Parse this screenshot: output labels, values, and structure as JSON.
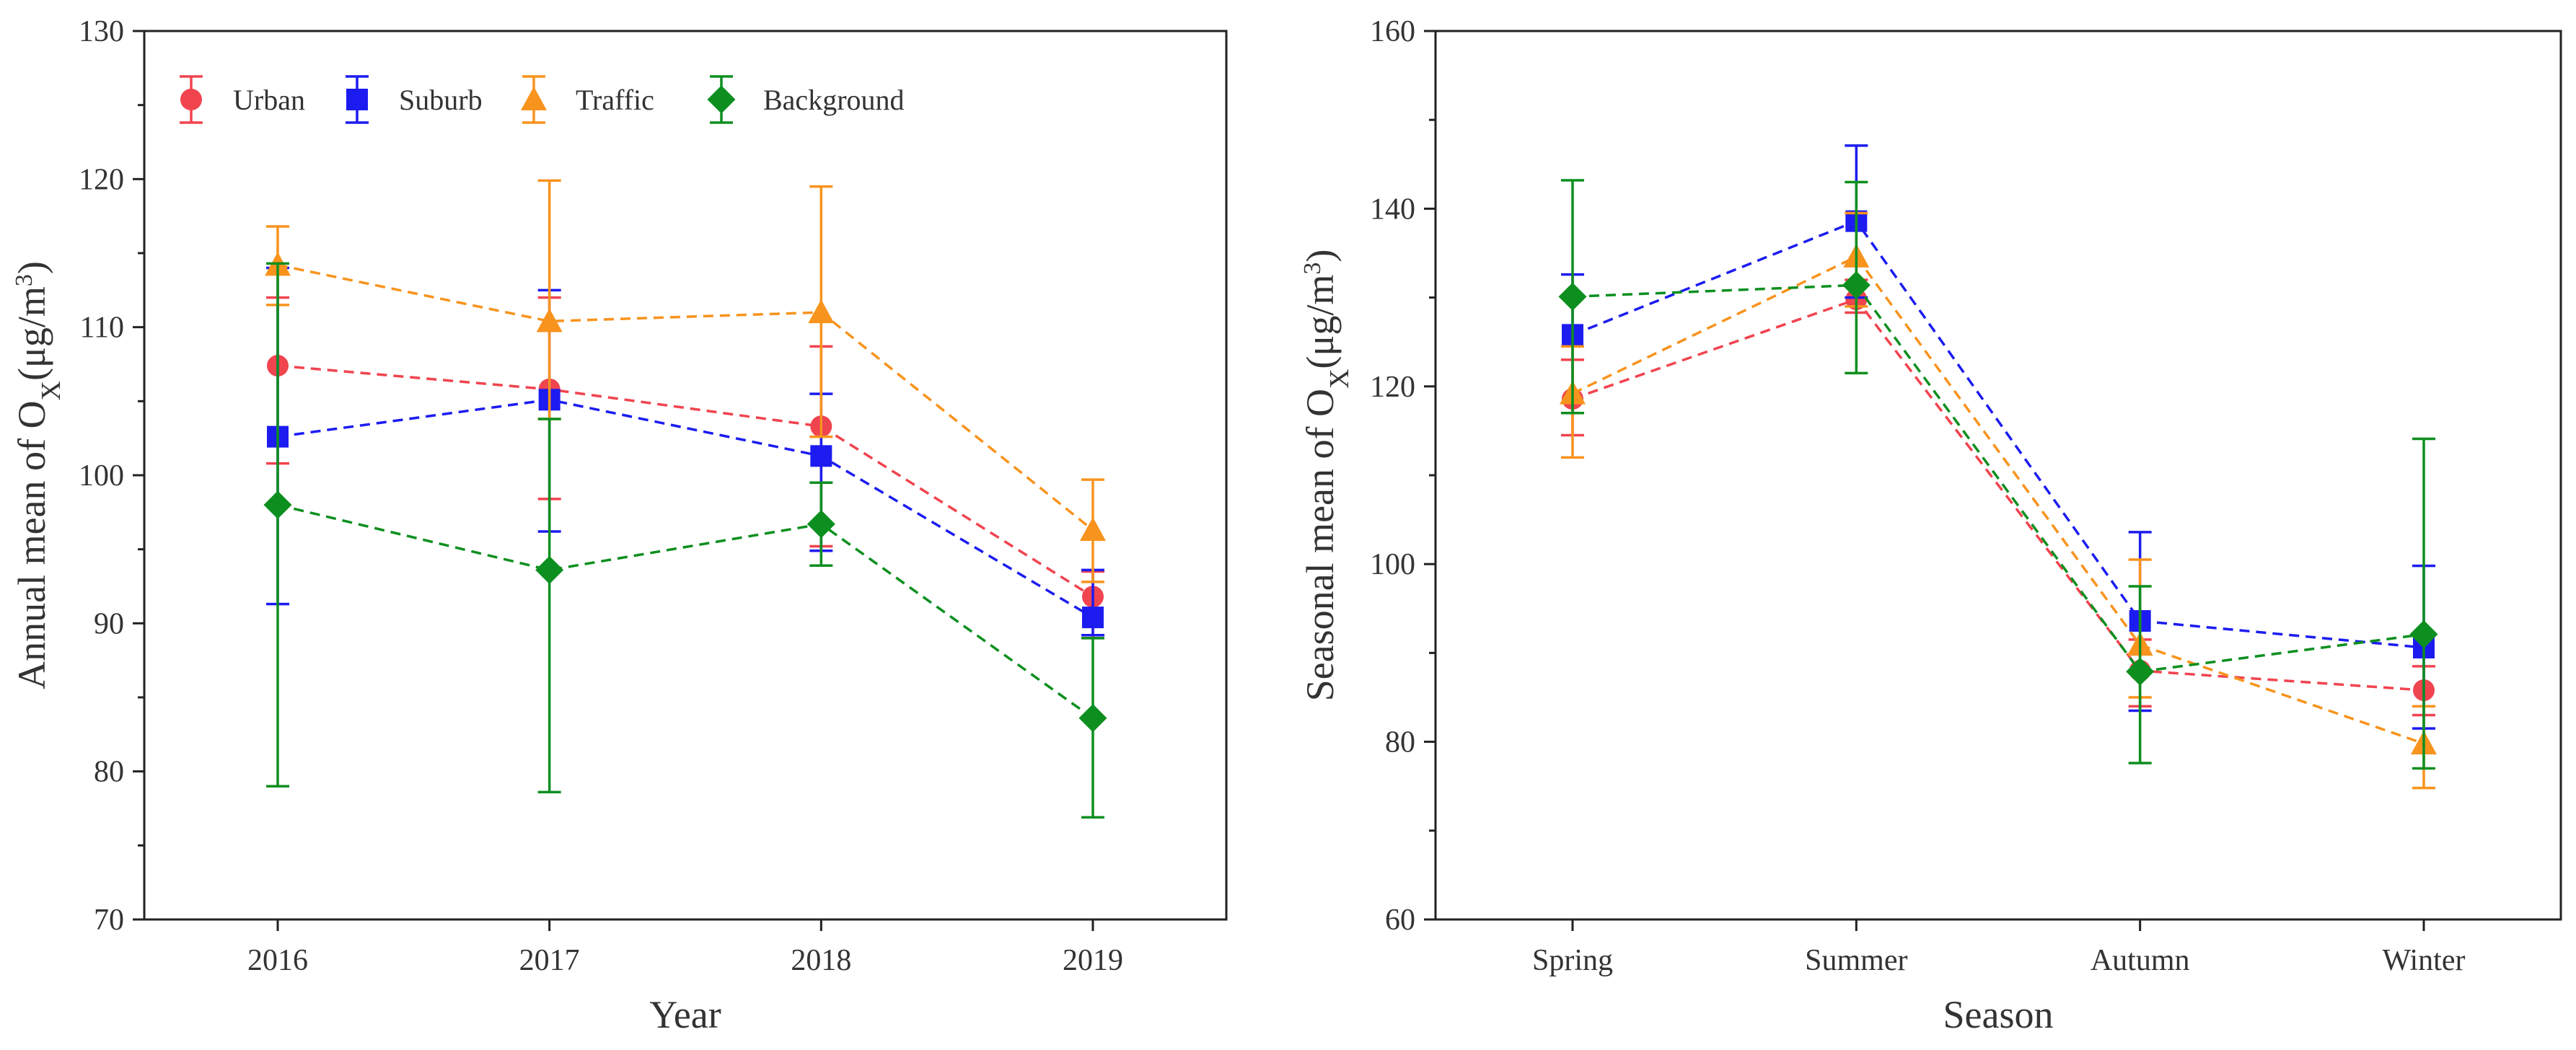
{
  "chart_data": [
    {
      "type": "line",
      "title": "",
      "xlabel": "Year",
      "ylabel": "Annual mean of O",
      "ylabel_sub": "X",
      "ylabel_units": "(μg/m",
      "ylabel_sup": "3",
      "ylabel_close": ")",
      "categories": [
        "2016",
        "2017",
        "2018",
        "2019"
      ],
      "ylim": [
        70,
        130
      ],
      "yticks": [
        70,
        80,
        90,
        100,
        110,
        120,
        130
      ],
      "ytick_labels": [
        "70",
        "80",
        "90",
        "100",
        "110",
        "120",
        "130"
      ],
      "legend_position": "top-left",
      "series": [
        {
          "name": "Urban",
          "color": "#f0444f",
          "marker": "circle",
          "values": [
            107.4,
            105.8,
            103.3,
            91.8
          ],
          "err_low": [
            100.8,
            98.4,
            95.2,
            89.0
          ],
          "err_high": [
            112.0,
            112.0,
            108.7,
            93.5
          ]
        },
        {
          "name": "Suburb",
          "color": "#1c1cf0",
          "marker": "square",
          "values": [
            102.6,
            105.1,
            101.3,
            90.4
          ],
          "err_low": [
            91.3,
            96.2,
            94.9,
            89.2
          ],
          "err_high": [
            114.0,
            112.5,
            105.5,
            93.6
          ]
        },
        {
          "name": "Traffic",
          "color": "#f8931d",
          "marker": "triangle",
          "values": [
            114.2,
            110.4,
            111.0,
            96.3
          ],
          "err_low": [
            111.5,
            103.8,
            102.6,
            92.8
          ],
          "err_high": [
            116.8,
            119.9,
            119.5,
            99.7
          ]
        },
        {
          "name": "Background",
          "color": "#0d8f1f",
          "marker": "diamond",
          "values": [
            98.0,
            93.6,
            96.7,
            83.6
          ],
          "err_low": [
            79.0,
            78.6,
            93.9,
            76.9
          ],
          "err_high": [
            114.3,
            103.8,
            99.5,
            89.0
          ]
        }
      ]
    },
    {
      "type": "line",
      "title": "",
      "xlabel": "Season",
      "ylabel": "Seasonal mean of O",
      "ylabel_sub": "X",
      "ylabel_units": "(μg/m",
      "ylabel_sup": "3",
      "ylabel_close": ")",
      "categories": [
        "Spring",
        "Summer",
        "Autumn",
        "Winter"
      ],
      "ylim": [
        60,
        160
      ],
      "yticks": [
        60,
        80,
        100,
        120,
        140,
        160
      ],
      "ytick_labels": [
        "60",
        "80",
        "100",
        "120",
        "140",
        "160"
      ],
      "series": [
        {
          "name": "Urban",
          "color": "#f0444f",
          "marker": "circle",
          "values": [
            118.6,
            129.8,
            88.0,
            85.8
          ],
          "err_low": [
            114.5,
            128.3,
            84.0,
            83.0
          ],
          "err_high": [
            123.0,
            132.0,
            91.5,
            88.5
          ]
        },
        {
          "name": "Suburb",
          "color": "#1c1cf0",
          "marker": "square",
          "values": [
            125.8,
            138.6,
            93.6,
            90.6
          ],
          "err_low": [
            117.0,
            130.0,
            83.5,
            81.5
          ],
          "err_high": [
            132.6,
            147.1,
            103.6,
            99.8
          ]
        },
        {
          "name": "Traffic",
          "color": "#f8931d",
          "marker": "triangle",
          "values": [
            119.2,
            134.6,
            90.9,
            79.8
          ],
          "err_low": [
            112.0,
            129.0,
            85.0,
            74.8
          ],
          "err_high": [
            124.5,
            139.5,
            100.5,
            84.0
          ]
        },
        {
          "name": "Background",
          "color": "#0d8f1f",
          "marker": "diamond",
          "values": [
            130.1,
            131.4,
            87.9,
            92.1
          ],
          "err_low": [
            117.0,
            121.5,
            77.6,
            77.0
          ],
          "err_high": [
            143.2,
            143.0,
            97.5,
            114.1
          ]
        }
      ]
    }
  ]
}
